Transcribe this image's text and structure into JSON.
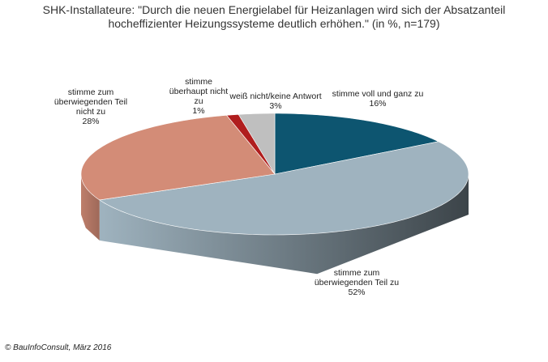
{
  "chart_data": {
    "type": "pie3d",
    "title": "SHK-Installateure: \"Durch die neuen Energielabel für Heizanlagen wird sich der Absatzanteil hocheffizienter Heizungssysteme deutlich erhöhen.\" (in %, n=179)",
    "categories": [
      "stimme voll und ganz zu",
      "stimme zum überwiegenden Teil zu",
      "stimme zum überwiegenden Teil nicht zu",
      "stimme überhaupt nicht zu",
      "weiß nicht/keine Antwort"
    ],
    "values": [
      16,
      52,
      28,
      1,
      3
    ],
    "value_labels": [
      "16%",
      "52%",
      "28%",
      "1%",
      "3%"
    ],
    "colors": [
      "#0d5570",
      "#9fb3bf",
      "#d38c77",
      "#b01e1e",
      "#bfbfbf"
    ],
    "source": "© BauInfoConsult, März 2016"
  }
}
